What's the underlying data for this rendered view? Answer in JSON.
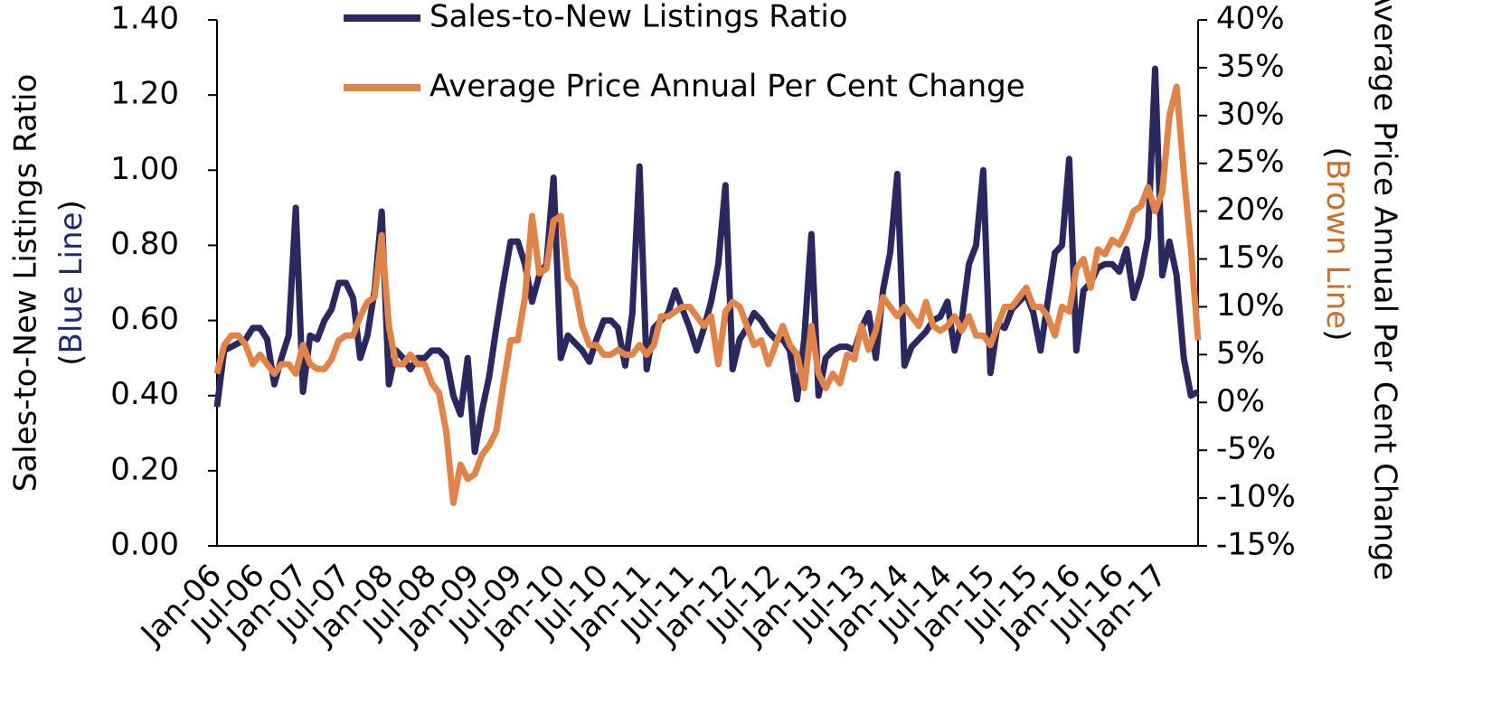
{
  "chart_data": {
    "type": "line",
    "y_label": "Sales-to-New Listings Ratio",
    "y_label_note": {
      "open": "(",
      "text": "Blue Line",
      "close": ")",
      "color": "#1f2a6e"
    },
    "y2_label": "Average Price Annual Per Cent Change",
    "y2_label_note": {
      "open": "(",
      "text": "Brown Line",
      "close": ")",
      "color": "#c8702c"
    },
    "categories": [
      "Jan-06",
      null,
      null,
      null,
      null,
      null,
      "Jul-06",
      null,
      null,
      null,
      null,
      null,
      "Jan-07",
      null,
      null,
      null,
      null,
      null,
      "Jul-07",
      null,
      null,
      null,
      null,
      null,
      "Jan-08",
      null,
      null,
      null,
      null,
      null,
      "Jul-08",
      null,
      null,
      null,
      null,
      null,
      "Jan-09",
      null,
      null,
      null,
      null,
      null,
      "Jul-09",
      null,
      null,
      null,
      null,
      null,
      "Jan-10",
      null,
      null,
      null,
      null,
      null,
      "Jul-10",
      null,
      null,
      null,
      null,
      null,
      "Jan-11",
      null,
      null,
      null,
      null,
      null,
      "Jul-11",
      null,
      null,
      null,
      null,
      null,
      "Jan-12",
      null,
      null,
      null,
      null,
      null,
      "Jul-12",
      null,
      null,
      null,
      null,
      null,
      "Jan-13",
      null,
      null,
      null,
      null,
      null,
      "Jul-13",
      null,
      null,
      null,
      null,
      null,
      "Jan-14",
      null,
      null,
      null,
      null,
      null,
      "Jul-14",
      null,
      null,
      null,
      null,
      null,
      "Jan-15",
      null,
      null,
      null,
      null,
      null,
      "Jul-15",
      null,
      null,
      null,
      null,
      null,
      "Jan-16",
      null,
      null,
      null,
      null,
      null,
      "Jul-16",
      null,
      null,
      null,
      null,
      null,
      "Jan-17",
      null,
      null,
      null,
      null,
      null
    ],
    "series": [
      {
        "name": "Sales-to-New Listings Ratio",
        "color": "#2b2860",
        "values": [
          0.37,
          0.52,
          0.53,
          0.54,
          0.55,
          0.58,
          0.58,
          0.55,
          0.43,
          0.5,
          0.56,
          0.9,
          0.41,
          0.56,
          0.55,
          0.6,
          0.63,
          0.7,
          0.7,
          0.66,
          0.5,
          0.56,
          0.68,
          0.89,
          0.43,
          0.52,
          0.5,
          0.47,
          0.5,
          0.5,
          0.52,
          0.52,
          0.5,
          0.4,
          0.35,
          0.5,
          0.25,
          0.36,
          0.45,
          0.58,
          0.7,
          0.81,
          0.81,
          0.75,
          0.65,
          0.72,
          0.75,
          0.98,
          0.5,
          0.56,
          0.54,
          0.52,
          0.49,
          0.55,
          0.6,
          0.6,
          0.58,
          0.48,
          0.62,
          1.01,
          0.47,
          0.58,
          0.6,
          0.62,
          0.68,
          0.63,
          0.58,
          0.52,
          0.58,
          0.65,
          0.75,
          0.96,
          0.47,
          0.55,
          0.58,
          0.62,
          0.6,
          0.57,
          0.55,
          0.55,
          0.52,
          0.39,
          0.55,
          0.83,
          0.4,
          0.5,
          0.52,
          0.53,
          0.53,
          0.52,
          0.58,
          0.62,
          0.5,
          0.68,
          0.78,
          0.99,
          0.48,
          0.53,
          0.55,
          0.57,
          0.6,
          0.61,
          0.65,
          0.52,
          0.6,
          0.75,
          0.8,
          1.0,
          0.46,
          0.59,
          0.58,
          0.63,
          0.65,
          0.67,
          0.62,
          0.52,
          0.65,
          0.78,
          0.8,
          1.03,
          0.52,
          0.68,
          0.7,
          0.74,
          0.75,
          0.75,
          0.73,
          0.79,
          0.66,
          0.72,
          0.82,
          1.27,
          0.72,
          0.81,
          0.72,
          0.5,
          0.4,
          0.41
        ]
      },
      {
        "name": "Average Price Annual Per Cent Change",
        "color": "#e0844a",
        "axis": "y2",
        "values": [
          3,
          6,
          7,
          7,
          6,
          4,
          5,
          4,
          3,
          4,
          4,
          3,
          6,
          4,
          3.5,
          3.5,
          4.5,
          6.5,
          7,
          7,
          9,
          10.5,
          11,
          17.5,
          8,
          4,
          4,
          5,
          4,
          4,
          2,
          1,
          -3,
          -10.5,
          -6.5,
          -8,
          -7.5,
          -5.5,
          -4.5,
          -3,
          2,
          6.5,
          6.5,
          11,
          19.5,
          13.5,
          14,
          19,
          19.5,
          13,
          12,
          8,
          6,
          6,
          5,
          5,
          5.5,
          5,
          5,
          6,
          5,
          6,
          9,
          9,
          9.5,
          10,
          10,
          9,
          8,
          9,
          4,
          9.5,
          10.5,
          10,
          8,
          6,
          6.5,
          4,
          6,
          8,
          6,
          5,
          1.5,
          8,
          3,
          1.5,
          3,
          2,
          5,
          4.5,
          8,
          5.5,
          7.5,
          11,
          10,
          9,
          10,
          9,
          8,
          10.5,
          8,
          7.5,
          8,
          9,
          7.5,
          9,
          7,
          7,
          6,
          8,
          10,
          10,
          11,
          12,
          10,
          10,
          9,
          7,
          10,
          9.5,
          14,
          15,
          12,
          16,
          15.5,
          17,
          16.5,
          18,
          20,
          20.5,
          22.5,
          20,
          22,
          30,
          33,
          24,
          16,
          6.5
        ]
      }
    ],
    "ylim": [
      0,
      1.4
    ],
    "yticks": [
      {
        "value": 0,
        "label": "0.00"
      },
      {
        "value": 0.2,
        "label": "0.20"
      },
      {
        "value": 0.4,
        "label": "0.40"
      },
      {
        "value": 0.6,
        "label": "0.60"
      },
      {
        "value": 0.8,
        "label": "0.80"
      },
      {
        "value": 1,
        "label": "1.00"
      },
      {
        "value": 1.2,
        "label": "1.20"
      },
      {
        "value": 1.4,
        "label": "1.40"
      }
    ],
    "y2lim": [
      -15,
      40
    ],
    "y2ticks": [
      {
        "value": -15,
        "label": "-15%"
      },
      {
        "value": -10,
        "label": "-10%"
      },
      {
        "value": -5,
        "label": "-5%"
      },
      {
        "value": 0,
        "label": "0%"
      },
      {
        "value": 5,
        "label": "5%"
      },
      {
        "value": 10,
        "label": "10%"
      },
      {
        "value": 15,
        "label": "15%"
      },
      {
        "value": 20,
        "label": "20%"
      },
      {
        "value": 25,
        "label": "25%"
      },
      {
        "value": 30,
        "label": "30%"
      },
      {
        "value": 35,
        "label": "35%"
      },
      {
        "value": 40,
        "label": "40%"
      }
    ]
  }
}
